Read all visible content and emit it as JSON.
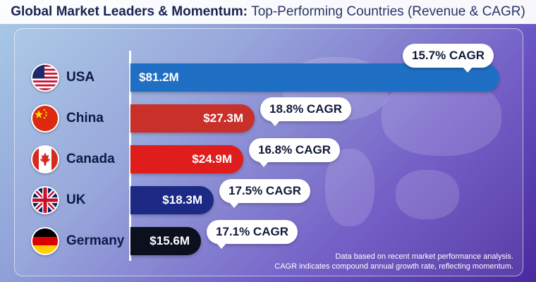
{
  "title": {
    "bold": "Global Market Leaders & Momentum:",
    "light": "Top-Performing Countries (Revenue & CAGR)"
  },
  "chart_data": {
    "type": "bar",
    "orientation": "horizontal",
    "categories": [
      "USA",
      "China",
      "Canada",
      "UK",
      "Germany"
    ],
    "values": [
      81.2,
      27.3,
      24.9,
      18.3,
      15.6
    ],
    "value_labels": [
      "$81.2M",
      "$27.3M",
      "$24.9M",
      "$18.3M",
      "$15.6M"
    ],
    "annotations": [
      "15.7% CAGR",
      "18.8% CAGR",
      "16.8% CAGR",
      "17.5% CAGR",
      "17.1% CAGR"
    ],
    "cagr": [
      15.7,
      18.8,
      16.8,
      17.5,
      17.1
    ],
    "colors": [
      "#1f6fc4",
      "#c9302a",
      "#e01d1d",
      "#1c2a85",
      "#0b0f1e"
    ],
    "flag_icons": [
      "usa-flag-icon",
      "china-flag-icon",
      "canada-flag-icon",
      "uk-flag-icon",
      "germany-flag-icon"
    ],
    "xlim": [
      0,
      81.2
    ]
  },
  "footnote": {
    "line1": "Data based on recent market performance analysis.",
    "line2": "CAGR indicates compound annual growth rate, reflecting momentum."
  }
}
